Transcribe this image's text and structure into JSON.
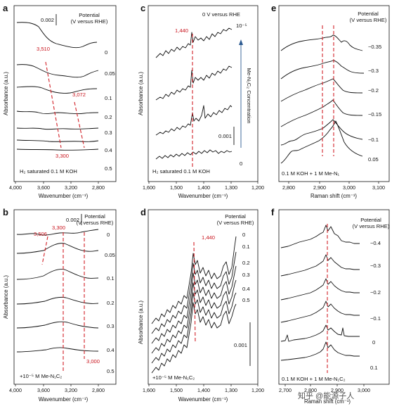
{
  "figure": {
    "panels": [
      {
        "id": "a",
        "letter": "a",
        "xlabel": "Wavenumber (cm⁻¹)",
        "ylabel": "Absorbance (a.u.)",
        "xticks": [
          "4,000",
          "3,600",
          "3,200",
          "2,800"
        ],
        "legend_title": "Potential\n(V versus RHE)",
        "scale_bar": "0.002",
        "trace_labels": [
          "0",
          "0.05",
          "0.1",
          "0.2",
          "0.3",
          "0.4",
          "0.5"
        ],
        "annotations": [
          "3,510",
          "3,072",
          "3,300"
        ],
        "condition": "H₂ saturated 0.1 M KOH"
      },
      {
        "id": "b",
        "letter": "b",
        "xlabel": "Wavenumber (cm⁻¹)",
        "ylabel": "Absorbance (a.u.)",
        "xticks": [
          "4,000",
          "3,600",
          "3,200",
          "2,800"
        ],
        "legend_title": "Potential\n(V versus RHE)",
        "scale_bar": "0.002",
        "trace_labels": [
          "0",
          "0.05",
          "0.1",
          "0.2",
          "0.3",
          "0.4",
          "0.5"
        ],
        "annotations": [
          "3,506",
          "3,300",
          "3,000"
        ],
        "condition": "+10⁻⁵ M Me-N₁C₂"
      },
      {
        "id": "c",
        "letter": "c",
        "xlabel": "Wavenumber (cm⁻¹)",
        "ylabel": "Absorbance (a.u.)",
        "xticks": [
          "1,600",
          "1,500",
          "1,400",
          "1,300",
          "1,200"
        ],
        "legend_title": "0 V versus RHE",
        "scale_bar": "0.001",
        "trace_labels": [
          "10⁻⁵",
          "0"
        ],
        "concentration_label": "Me-N₁C₂ Concentration",
        "annotations": [
          "1,440"
        ],
        "condition": "H₂ saturated 0.1 M KOH"
      },
      {
        "id": "d",
        "letter": "d",
        "xlabel": "Wavenumber (cm⁻¹)",
        "ylabel": "Absorbance (a.u.)",
        "xticks": [
          "1,600",
          "1,500",
          "1,400",
          "1,300",
          "1,200"
        ],
        "legend_title": "Potential\n(V versus RHE)",
        "scale_bar": "0.001",
        "trace_labels": [
          "0",
          "0.1",
          "0.2",
          "0.3",
          "0.4",
          "0.5"
        ],
        "annotations": [
          "1,440"
        ],
        "condition": "+10⁻⁵ M Me-N₁C₂"
      },
      {
        "id": "e",
        "letter": "e",
        "xlabel": "Raman shift (cm⁻¹)",
        "ylabel": "",
        "xticks": [
          "2,800",
          "2,900",
          "3,000",
          "3,100"
        ],
        "legend_title": "Potential\n(V versus RHE)",
        "trace_labels": [
          "−0.35",
          "−0.3",
          "−0.2",
          "−0.15",
          "−0.1",
          "0.05"
        ],
        "condition": "0.1 M KOH + 1 M Me-N₁"
      },
      {
        "id": "f",
        "letter": "f",
        "xlabel": "Raman shift (cm⁻¹)",
        "ylabel": "",
        "xticks": [
          "2,700",
          "2,800",
          "2,900",
          "3,000"
        ],
        "legend_title": "Potential\n(V versus RHE)",
        "trace_labels": [
          "−0.4",
          "−0.3",
          "−0.2",
          "−0.1",
          "0",
          "0.1"
        ],
        "condition": "0.1 M KOH + 1 M Me-N₁C₂"
      }
    ],
    "watermark": "知乎 @能源子人",
    "colors": {
      "annotation": "#d21f26",
      "trace": "#111111"
    }
  }
}
